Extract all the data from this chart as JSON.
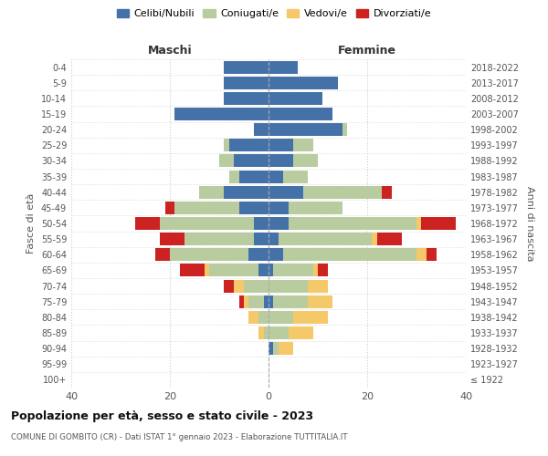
{
  "age_groups": [
    "100+",
    "95-99",
    "90-94",
    "85-89",
    "80-84",
    "75-79",
    "70-74",
    "65-69",
    "60-64",
    "55-59",
    "50-54",
    "45-49",
    "40-44",
    "35-39",
    "30-34",
    "25-29",
    "20-24",
    "15-19",
    "10-14",
    "5-9",
    "0-4"
  ],
  "birth_years": [
    "≤ 1922",
    "1923-1927",
    "1928-1932",
    "1933-1937",
    "1938-1942",
    "1943-1947",
    "1948-1952",
    "1953-1957",
    "1958-1962",
    "1963-1967",
    "1968-1972",
    "1973-1977",
    "1978-1982",
    "1983-1987",
    "1988-1992",
    "1993-1997",
    "1998-2002",
    "2003-2007",
    "2008-2012",
    "2013-2017",
    "2018-2022"
  ],
  "colors": {
    "celibi": "#4472a8",
    "coniugati": "#b8cca0",
    "vedovi": "#f5c96a",
    "divorziati": "#cc2222"
  },
  "maschi": {
    "celibi": [
      0,
      0,
      0,
      0,
      0,
      1,
      0,
      2,
      4,
      3,
      3,
      6,
      9,
      6,
      7,
      8,
      3,
      19,
      9,
      9,
      9
    ],
    "coniugati": [
      0,
      0,
      0,
      1,
      2,
      3,
      5,
      10,
      16,
      14,
      19,
      13,
      5,
      2,
      3,
      1,
      0,
      0,
      0,
      0,
      0
    ],
    "vedovi": [
      0,
      0,
      0,
      1,
      2,
      1,
      2,
      1,
      0,
      0,
      0,
      0,
      0,
      0,
      0,
      0,
      0,
      0,
      0,
      0,
      0
    ],
    "divorziati": [
      0,
      0,
      0,
      0,
      0,
      1,
      2,
      5,
      3,
      5,
      5,
      2,
      0,
      0,
      0,
      0,
      0,
      0,
      0,
      0,
      0
    ]
  },
  "femmine": {
    "celibi": [
      0,
      0,
      1,
      0,
      0,
      1,
      0,
      1,
      3,
      2,
      4,
      4,
      7,
      3,
      5,
      5,
      15,
      13,
      11,
      14,
      6
    ],
    "coniugati": [
      0,
      0,
      1,
      4,
      5,
      7,
      8,
      8,
      27,
      19,
      26,
      11,
      16,
      5,
      5,
      4,
      1,
      0,
      0,
      0,
      0
    ],
    "vedovi": [
      0,
      0,
      3,
      5,
      7,
      5,
      4,
      1,
      2,
      1,
      1,
      0,
      0,
      0,
      0,
      0,
      0,
      0,
      0,
      0,
      0
    ],
    "divorziati": [
      0,
      0,
      0,
      0,
      0,
      0,
      0,
      2,
      2,
      5,
      7,
      0,
      2,
      0,
      0,
      0,
      0,
      0,
      0,
      0,
      0
    ]
  },
  "xlim": 40,
  "title": "Popolazione per età, sesso e stato civile - 2023",
  "subtitle": "COMUNE DI GOMBITO (CR) - Dati ISTAT 1° gennaio 2023 - Elaborazione TUTTITALIA.IT",
  "ylabel_left": "Fasce di età",
  "ylabel_right": "Anni di nascita",
  "xlabel_left": "Maschi",
  "xlabel_right": "Femmine",
  "legend_labels": [
    "Celibi/Nubili",
    "Coniugati/e",
    "Vedovi/e",
    "Divorziati/e"
  ],
  "background_color": "#ffffff",
  "grid_color": "#cccccc"
}
